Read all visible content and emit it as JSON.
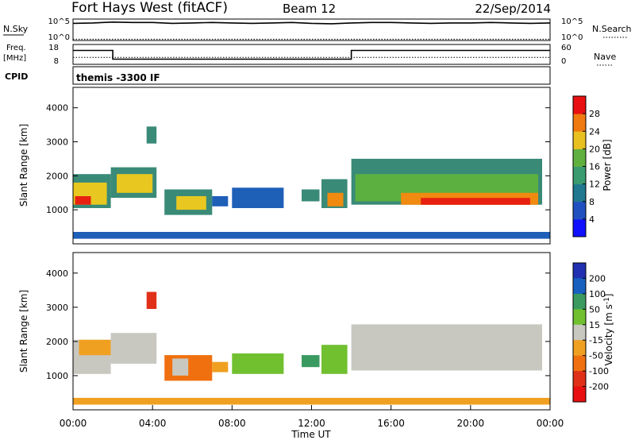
{
  "header": {
    "title": "Fort Hays West (fitACF)",
    "beam": "Beam 12",
    "date": "22/Sep/2014"
  },
  "chart_data": [
    {
      "type": "line",
      "id": "noise",
      "ylabel_left": "N.Sky",
      "ylabel_right": "N.Search",
      "ticks_left": [
        "10^5",
        "10^0"
      ],
      "ticks_right": [
        "10^5",
        "10^0"
      ],
      "series": [
        {
          "name": "N.Sky",
          "x": [
            0,
            1,
            2,
            3,
            4,
            5,
            6,
            7,
            8,
            9,
            10,
            11,
            12,
            13,
            14,
            15,
            16,
            17,
            18,
            19,
            20,
            21,
            22,
            23,
            24
          ],
          "values": [
            4.0,
            4.1,
            4.3,
            4.2,
            4.2,
            4.0,
            4.1,
            4.2,
            4.1,
            4.0,
            4.1,
            4.2,
            4.0,
            3.9,
            4.1,
            4.2,
            4.2,
            4.1,
            4.0,
            4.1,
            4.1,
            4.2,
            4.1,
            4.0,
            4.1
          ]
        },
        {
          "name": "N.Search",
          "x": [
            0,
            24
          ],
          "values": [
            0.3,
            0.3
          ]
        }
      ]
    },
    {
      "type": "line",
      "id": "frequency",
      "ylabel_left": "Freq.",
      "ylabel_left_unit": "[MHz]",
      "ticks_left": [
        "18",
        "8"
      ],
      "ticks_right": [
        "60",
        "0"
      ],
      "ylabel_right": "Nave",
      "series": [
        {
          "name": "Freq.",
          "x": [
            0,
            2,
            2,
            14,
            14,
            24
          ],
          "values": [
            15,
            15,
            10.6,
            10.6,
            15,
            15
          ]
        },
        {
          "name": "Nave",
          "x": [
            0,
            24
          ],
          "values": [
            11.5,
            11.5
          ]
        }
      ]
    },
    {
      "type": "table",
      "id": "cpid",
      "label": "CPID",
      "value": "themis -3300 IF"
    },
    {
      "type": "heatmap",
      "id": "power",
      "ylabel": "Slant Range [km]",
      "ylim": [
        0,
        4600
      ],
      "yticks": [
        1000,
        2000,
        3000,
        4000
      ],
      "xlim": [
        0,
        24
      ],
      "colorbar_label": "Power [dB]",
      "colorbar_ticks": [
        "4",
        "8",
        "12",
        "16",
        "20",
        "24",
        "28"
      ],
      "colorbar_range": [
        0,
        32
      ],
      "colors": [
        "#2020ff",
        "#1e5fb8",
        "#3a8a78",
        "#5cb040",
        "#e8c820",
        "#f08a10",
        "#e82010"
      ],
      "regions": [
        {
          "t0": 0.0,
          "t1": 1.9,
          "r0": 1050,
          "r1": 2050,
          "level": 2
        },
        {
          "t0": 0.0,
          "t1": 1.7,
          "r0": 1150,
          "r1": 1800,
          "level": 4
        },
        {
          "t0": 0.1,
          "t1": 0.9,
          "r0": 1150,
          "r1": 1400,
          "level": 6
        },
        {
          "t0": 1.9,
          "t1": 4.2,
          "r0": 1350,
          "r1": 2250,
          "level": 2
        },
        {
          "t0": 2.2,
          "t1": 4.0,
          "r0": 1500,
          "r1": 2050,
          "level": 4
        },
        {
          "t0": 3.7,
          "t1": 4.2,
          "r0": 2950,
          "r1": 3450,
          "level": 2
        },
        {
          "t0": 4.6,
          "t1": 7.0,
          "r0": 850,
          "r1": 1600,
          "level": 2
        },
        {
          "t0": 5.2,
          "t1": 6.7,
          "r0": 1000,
          "r1": 1400,
          "level": 4
        },
        {
          "t0": 7.0,
          "t1": 7.8,
          "r0": 1100,
          "r1": 1400,
          "level": 1
        },
        {
          "t0": 8.0,
          "t1": 10.6,
          "r0": 1050,
          "r1": 1650,
          "level": 1
        },
        {
          "t0": 11.5,
          "t1": 12.4,
          "r0": 1250,
          "r1": 1600,
          "level": 2
        },
        {
          "t0": 12.5,
          "t1": 13.8,
          "r0": 1050,
          "r1": 1900,
          "level": 2
        },
        {
          "t0": 12.8,
          "t1": 13.6,
          "r0": 1100,
          "r1": 1500,
          "level": 5
        },
        {
          "t0": 14.0,
          "t1": 23.6,
          "r0": 1150,
          "r1": 2500,
          "level": 2
        },
        {
          "t0": 14.2,
          "t1": 23.4,
          "r0": 1250,
          "r1": 2050,
          "level": 3
        },
        {
          "t0": 16.5,
          "t1": 23.4,
          "r0": 1150,
          "r1": 1500,
          "level": 5
        },
        {
          "t0": 17.5,
          "t1": 23.0,
          "r0": 1150,
          "r1": 1350,
          "level": 6
        },
        {
          "t0": 0.0,
          "t1": 24.0,
          "r0": 150,
          "r1": 350,
          "level": 1
        }
      ]
    },
    {
      "type": "heatmap",
      "id": "velocity",
      "ylabel": "Slant Range [km]",
      "ylim": [
        0,
        4600
      ],
      "yticks": [
        1000,
        2000,
        3000,
        4000
      ],
      "xlim": [
        0,
        24
      ],
      "xticks": [
        "00:00",
        "04:00",
        "08:00",
        "12:00",
        "16:00",
        "20:00",
        "00:00"
      ],
      "xlabel": "Time UT",
      "colorbar_label": "Velocity [m s",
      "colorbar_label_sup": "-1",
      "colorbar_label_end": "]",
      "colorbar_ticks": [
        "200",
        "100",
        "50",
        "15",
        "-15",
        "-50",
        "-100",
        "-200"
      ],
      "colors": [
        "#2030b0",
        "#1860c0",
        "#3a9a60",
        "#70c030",
        "#c8c8c0",
        "#f0a020",
        "#f07010",
        "#e03018",
        "#e81010"
      ],
      "regions": [
        {
          "t0": 0.0,
          "t1": 1.9,
          "r0": 1050,
          "r1": 2050,
          "level": 4
        },
        {
          "t0": 0.3,
          "t1": 1.9,
          "r0": 1600,
          "r1": 2050,
          "level": 5
        },
        {
          "t0": 1.9,
          "t1": 4.2,
          "r0": 1350,
          "r1": 2250,
          "level": 4
        },
        {
          "t0": 3.7,
          "t1": 4.2,
          "r0": 2950,
          "r1": 3450,
          "level": 7
        },
        {
          "t0": 4.6,
          "t1": 7.0,
          "r0": 850,
          "r1": 1600,
          "level": 6
        },
        {
          "t0": 5.0,
          "t1": 5.8,
          "r0": 1000,
          "r1": 1500,
          "level": 4
        },
        {
          "t0": 7.0,
          "t1": 7.8,
          "r0": 1100,
          "r1": 1400,
          "level": 5
        },
        {
          "t0": 8.0,
          "t1": 10.6,
          "r0": 1050,
          "r1": 1650,
          "level": 3
        },
        {
          "t0": 11.5,
          "t1": 12.4,
          "r0": 1250,
          "r1": 1600,
          "level": 2
        },
        {
          "t0": 12.5,
          "t1": 13.8,
          "r0": 1050,
          "r1": 1900,
          "level": 3
        },
        {
          "t0": 14.0,
          "t1": 23.6,
          "r0": 1150,
          "r1": 2500,
          "level": 4
        },
        {
          "t0": 0.0,
          "t1": 24.0,
          "r0": 150,
          "r1": 350,
          "level": 5
        }
      ]
    }
  ]
}
